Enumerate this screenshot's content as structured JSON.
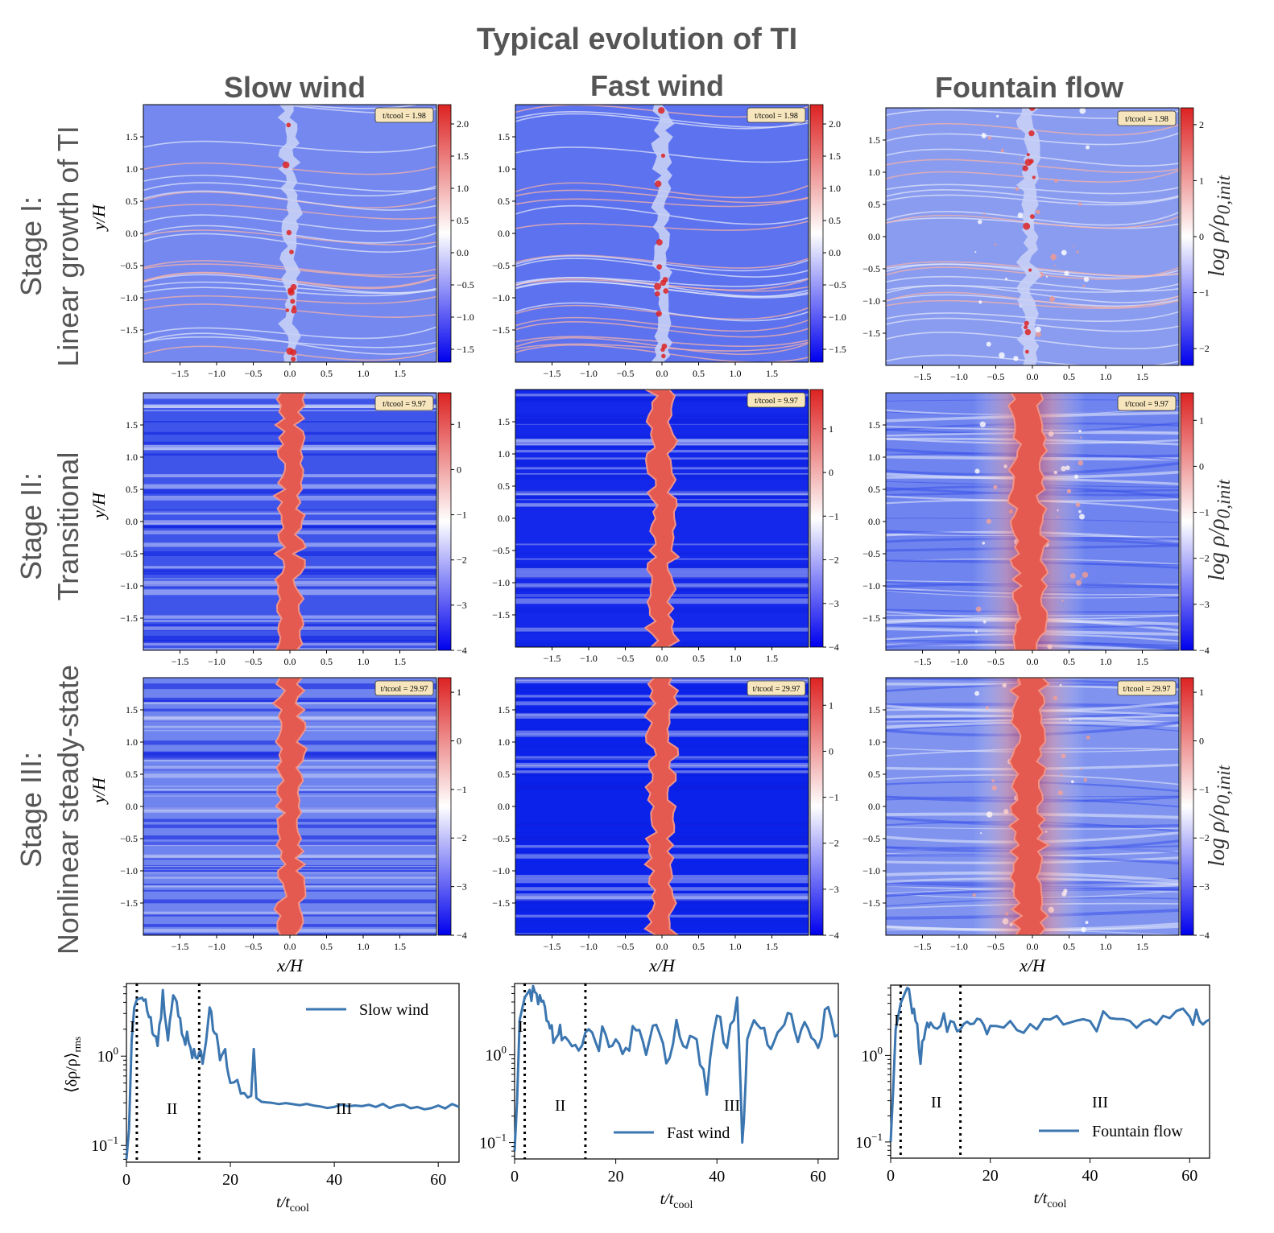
{
  "title": "Typical evolution of TI",
  "columns": [
    "Slow wind",
    "Fast wind",
    "Fountain flow"
  ],
  "stages": [
    "Stage I:\nLinear growth of TI",
    "Stage II:\nTransitional",
    "Stage III:\nNonlinear steady-state"
  ],
  "colorbar_label": "log ρ/ρ0,init",
  "colors": {
    "low": "#0000ee",
    "mid": "#ffffff",
    "high": "#dd2222",
    "bg_blue": "#6f86ee",
    "line": "#3b76b0"
  },
  "chart_data": [
    {
      "type": "heatmap",
      "panel": "Slow wind — Stage I",
      "time_label": "t/tcool = 1.98",
      "xlabel": "",
      "ylabel": "y/H",
      "xlim": [
        -2,
        2
      ],
      "ylim": [
        -2,
        2
      ],
      "xticks": [
        "−1.5",
        "−1.0",
        "−0.5",
        "0.0",
        "0.5",
        "1.0",
        "1.5"
      ],
      "yticks": [
        "−1.5",
        "−1.0",
        "−0.5",
        "0.0",
        "0.5",
        "1.0",
        "1.5"
      ],
      "cbar_range": [
        -1.7,
        2.3
      ],
      "cbar_ticks": [
        "−1.5",
        "−1.0",
        "−0.5",
        "0.0",
        "0.5",
        "1.0",
        "1.5",
        "2.0"
      ]
    },
    {
      "type": "heatmap",
      "panel": "Fast wind — Stage I",
      "time_label": "t/tcool = 1.98",
      "xlabel": "",
      "ylabel": "",
      "xlim": [
        -2,
        2
      ],
      "ylim": [
        -2,
        2
      ],
      "xticks": [
        "−1.5",
        "−1.0",
        "−0.5",
        "0.0",
        "0.5",
        "1.0",
        "1.5"
      ],
      "yticks": [
        "−1.5",
        "−1.0",
        "−0.5",
        "0.0",
        "0.5",
        "1.0",
        "1.5"
      ],
      "cbar_range": [
        -1.7,
        2.3
      ],
      "cbar_ticks": [
        "−1.5",
        "−1.0",
        "−0.5",
        "0.0",
        "0.5",
        "1.0",
        "1.5",
        "2.0"
      ]
    },
    {
      "type": "heatmap",
      "panel": "Fountain flow — Stage I",
      "time_label": "t/tcool = 1.98",
      "xlabel": "",
      "ylabel": "",
      "xlim": [
        -2,
        2
      ],
      "ylim": [
        -2,
        2
      ],
      "xticks": [
        "−1.5",
        "−1.0",
        "−0.5",
        "0.0",
        "0.5",
        "1.0",
        "1.5"
      ],
      "yticks": [
        "−1.5",
        "−1.0",
        "−0.5",
        "0.0",
        "0.5",
        "1.0",
        "1.5"
      ],
      "cbar_range": [
        -2.3,
        2.3
      ],
      "cbar_ticks": [
        "−2",
        "−1",
        "0",
        "1",
        "2"
      ]
    },
    {
      "type": "heatmap",
      "panel": "Slow wind — Stage II",
      "time_label": "t/tcool = 9.97",
      "xlabel": "",
      "ylabel": "y/H",
      "xlim": [
        -2,
        2
      ],
      "ylim": [
        -2,
        2
      ],
      "xticks": [
        "−1.5",
        "−1.0",
        "−0.5",
        "0.0",
        "0.5",
        "1.0",
        "1.5"
      ],
      "yticks": [
        "−1.5",
        "−1.0",
        "−0.5",
        "0.0",
        "0.5",
        "1.0",
        "1.5"
      ],
      "cbar_range": [
        -4,
        1.7
      ],
      "cbar_ticks": [
        "−4",
        "−3",
        "−2",
        "−1",
        "0",
        "1"
      ]
    },
    {
      "type": "heatmap",
      "panel": "Fast wind — Stage II",
      "time_label": "t/tcool = 9.97",
      "xlabel": "",
      "ylabel": "",
      "xlim": [
        -2,
        2
      ],
      "ylim": [
        -2,
        2
      ],
      "xticks": [
        "−1.5",
        "−1.0",
        "−0.5",
        "0.0",
        "0.5",
        "1.0",
        "1.5"
      ],
      "yticks": [
        "−1.5",
        "−1.0",
        "−0.5",
        "0.0",
        "0.5",
        "1.0",
        "1.5"
      ],
      "cbar_range": [
        -4,
        1.9
      ],
      "cbar_ticks": [
        "−4",
        "−3",
        "−2",
        "−1",
        "0",
        "1"
      ]
    },
    {
      "type": "heatmap",
      "panel": "Fountain flow — Stage II",
      "time_label": "t/tcool = 9.97",
      "xlabel": "",
      "ylabel": "",
      "xlim": [
        -2,
        2
      ],
      "ylim": [
        -2,
        2
      ],
      "xticks": [
        "−1.5",
        "−1.0",
        "−0.5",
        "0.0",
        "0.5",
        "1.0",
        "1.5"
      ],
      "yticks": [
        "−1.5",
        "−1.0",
        "−0.5",
        "0.0",
        "0.5",
        "1.0",
        "1.5"
      ],
      "cbar_range": [
        -4,
        1.6
      ],
      "cbar_ticks": [
        "−4",
        "−3",
        "−2",
        "−1",
        "0",
        "1"
      ]
    },
    {
      "type": "heatmap",
      "panel": "Slow wind — Stage III",
      "time_label": "t/tcool = 29.97",
      "xlabel": "x/H",
      "ylabel": "y/H",
      "xlim": [
        -2,
        2
      ],
      "ylim": [
        -2,
        2
      ],
      "xticks": [
        "−1.5",
        "−1.0",
        "−0.5",
        "0.0",
        "0.5",
        "1.0",
        "1.5"
      ],
      "yticks": [
        "−1.5",
        "−1.0",
        "−0.5",
        "0.0",
        "0.5",
        "1.0",
        "1.5"
      ],
      "cbar_range": [
        -4,
        1.3
      ],
      "cbar_ticks": [
        "−4",
        "−3",
        "−2",
        "−1",
        "0",
        "1"
      ]
    },
    {
      "type": "heatmap",
      "panel": "Fast wind — Stage III",
      "time_label": "t/tcool = 29.97",
      "xlabel": "x/H",
      "ylabel": "",
      "xlim": [
        -2,
        2
      ],
      "ylim": [
        -2,
        2
      ],
      "xticks": [
        "−1.5",
        "−1.0",
        "−0.5",
        "0.0",
        "0.5",
        "1.0",
        "1.5"
      ],
      "yticks": [
        "−1.5",
        "−1.0",
        "−0.5",
        "0.0",
        "0.5",
        "1.0",
        "1.5"
      ],
      "cbar_range": [
        -4,
        1.6
      ],
      "cbar_ticks": [
        "−4",
        "−3",
        "−2",
        "−1",
        "0",
        "1"
      ]
    },
    {
      "type": "heatmap",
      "panel": "Fountain flow — Stage III",
      "time_label": "t/tcool = 29.97",
      "xlabel": "x/H",
      "ylabel": "",
      "xlim": [
        -2,
        2
      ],
      "ylim": [
        -2,
        2
      ],
      "xticks": [
        "−1.5",
        "−1.0",
        "−0.5",
        "0.0",
        "0.5",
        "1.0",
        "1.5"
      ],
      "yticks": [
        "−1.5",
        "−1.0",
        "−0.5",
        "0.0",
        "0.5",
        "1.0",
        "1.5"
      ],
      "cbar_range": [
        -4,
        1.3
      ],
      "cbar_ticks": [
        "−4",
        "−3",
        "−2",
        "−1",
        "0",
        "1"
      ]
    },
    {
      "type": "line",
      "panel": "Slow wind time series",
      "xlabel": "t/tcool",
      "ylabel": "⟨δρ/ρ⟩rms",
      "yscale": "log",
      "xlim": [
        0,
        64
      ],
      "ylim": [
        0.065,
        6.5
      ],
      "xticks": [
        0,
        20,
        40,
        60
      ],
      "yticks": [
        "10−1",
        "100"
      ],
      "stage_boundaries": [
        2,
        14
      ],
      "stage_labels": [
        "I",
        "II",
        "III"
      ],
      "series": [
        {
          "name": "Slow wind",
          "x": [
            0,
            0.5,
            1,
            1.5,
            2,
            3,
            4,
            5,
            6,
            7,
            8,
            9,
            10,
            11,
            12,
            13,
            14,
            15,
            16,
            17,
            18,
            19,
            20,
            22,
            24,
            24.5,
            25,
            28,
            32,
            36,
            40,
            44,
            48,
            52,
            56,
            60,
            64
          ],
          "y": [
            0.07,
            0.15,
            1.5,
            3.5,
            4.3,
            4.5,
            3.2,
            1.8,
            1.3,
            5.5,
            1.5,
            4.8,
            2.8,
            1.6,
            1.4,
            1.2,
            1.1,
            1.1,
            3.5,
            1.8,
            0.9,
            1.2,
            0.5,
            0.38,
            0.36,
            1.2,
            0.34,
            0.3,
            0.29,
            0.28,
            0.27,
            0.28,
            0.27,
            0.28,
            0.27,
            0.28,
            0.27
          ]
        }
      ]
    },
    {
      "type": "line",
      "panel": "Fast wind time series",
      "xlabel": "t/tcool",
      "ylabel": "",
      "yscale": "log",
      "xlim": [
        0,
        64
      ],
      "ylim": [
        0.065,
        6.5
      ],
      "xticks": [
        0,
        20,
        40,
        60
      ],
      "yticks": [
        "10−1",
        "100"
      ],
      "stage_boundaries": [
        2,
        14
      ],
      "stage_labels": [
        "I",
        "II",
        "III"
      ],
      "series": [
        {
          "name": "Fast wind",
          "x": [
            0,
            0.5,
            1,
            2,
            3,
            4,
            5,
            6,
            7,
            8,
            9,
            10,
            12,
            14,
            16,
            18,
            20,
            22,
            24,
            26,
            28,
            30,
            32,
            34,
            36,
            38,
            40,
            42,
            44,
            45,
            46,
            48,
            50,
            52,
            54,
            56,
            58,
            60,
            62,
            64
          ],
          "y": [
            0.08,
            0.3,
            2.5,
            4.5,
            5.5,
            5.2,
            4.8,
            3.5,
            2.0,
            1.5,
            2.2,
            1.6,
            1.3,
            1.8,
            1.4,
            1.7,
            1.5,
            1.2,
            1.9,
            1.0,
            2.2,
            0.8,
            2.5,
            1.2,
            1.5,
            0.35,
            2.8,
            1.2,
            4.5,
            0.1,
            1.5,
            2.2,
            1.3,
            1.8,
            3.0,
            1.4,
            2.0,
            1.2,
            3.5,
            1.7
          ]
        }
      ]
    },
    {
      "type": "line",
      "panel": "Fountain flow time series",
      "xlabel": "t/tcool",
      "ylabel": "",
      "yscale": "log",
      "xlim": [
        0,
        64
      ],
      "ylim": [
        0.065,
        6.5
      ],
      "xticks": [
        0,
        20,
        40,
        60
      ],
      "yticks": [
        "10−1",
        "100"
      ],
      "stage_boundaries": [
        2,
        14
      ],
      "stage_labels": [
        "I",
        "II",
        "III"
      ],
      "series": [
        {
          "name": "Fountain flow",
          "x": [
            0,
            0.5,
            1,
            2,
            3,
            4,
            5,
            6,
            7,
            8,
            10,
            12,
            14,
            16,
            18,
            20,
            24,
            28,
            32,
            36,
            40,
            44,
            48,
            52,
            56,
            60,
            62,
            64
          ],
          "y": [
            0.1,
            0.4,
            2.0,
            4.0,
            5.5,
            4.2,
            2.5,
            0.8,
            2.0,
            2.4,
            2.2,
            2.5,
            2.0,
            2.3,
            2.6,
            2.2,
            2.5,
            2.3,
            2.6,
            2.4,
            2.5,
            2.7,
            2.5,
            2.6,
            2.7,
            2.8,
            2.5,
            2.6
          ]
        }
      ]
    }
  ]
}
